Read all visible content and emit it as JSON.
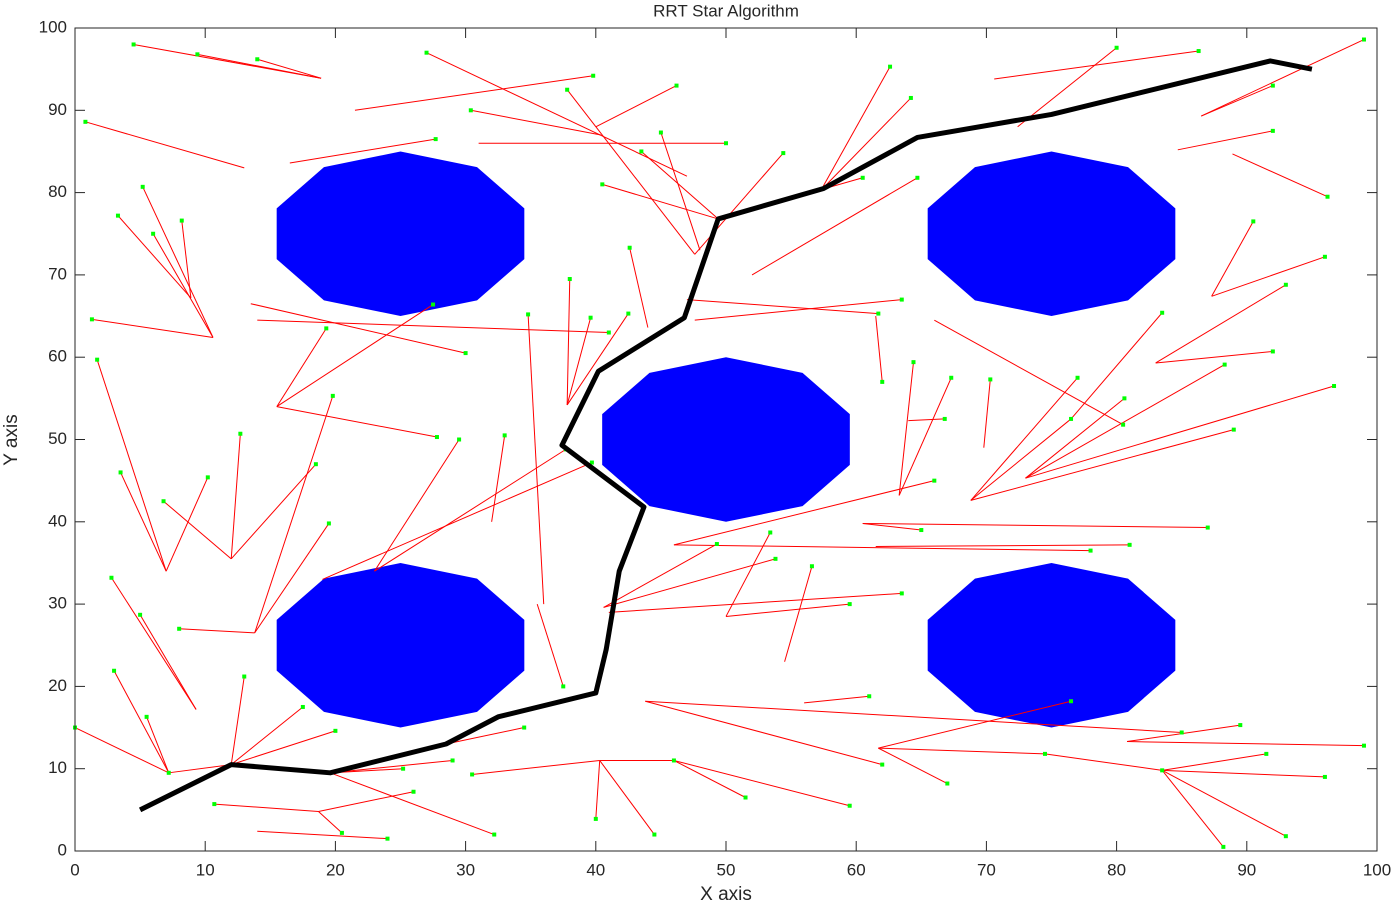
{
  "chart_data": {
    "type": "rrt",
    "title": "RRT Star Algorithm",
    "xlabel": "X axis",
    "ylabel": "Y axis",
    "xlim": [
      0,
      100
    ],
    "ylim": [
      0,
      100
    ],
    "xticks": [
      0,
      10,
      20,
      30,
      40,
      50,
      60,
      70,
      80,
      90,
      100
    ],
    "yticks": [
      0,
      10,
      20,
      30,
      40,
      50,
      60,
      70,
      80,
      90,
      100
    ],
    "obstacle_color": "#0000ff",
    "obstacles": [
      {
        "center": [
          25,
          75
        ],
        "radius": 10,
        "sides": 10
      },
      {
        "center": [
          75,
          75
        ],
        "radius": 10,
        "sides": 10
      },
      {
        "center": [
          50,
          50
        ],
        "radius": 10,
        "sides": 10
      },
      {
        "center": [
          25,
          25
        ],
        "radius": 10,
        "sides": 10
      },
      {
        "center": [
          75,
          25
        ],
        "radius": 10,
        "sides": 10
      }
    ],
    "edge_color": "#ff0000",
    "node_color": "#00ff00",
    "edges": [
      [
        12,
        10.5,
        7.2,
        9.5
      ],
      [
        7.2,
        9.5,
        3,
        21.9
      ],
      [
        7.2,
        9.5,
        5.5,
        16.3
      ],
      [
        7.2,
        9.5,
        0,
        15
      ],
      [
        12,
        10.5,
        17.5,
        17.5
      ],
      [
        12,
        10.5,
        13,
        21.2
      ],
      [
        12,
        10.5,
        20,
        14.6
      ],
      [
        19.6,
        9.5,
        25.2,
        10
      ],
      [
        19.6,
        9.5,
        32.2,
        2
      ],
      [
        19.6,
        9.5,
        29,
        11
      ],
      [
        18.7,
        4.8,
        26,
        7.2
      ],
      [
        18.7,
        4.8,
        10.7,
        5.7
      ],
      [
        18.7,
        4.8,
        20.5,
        2.2
      ],
      [
        14,
        2.4,
        24,
        1.5
      ],
      [
        28.5,
        13,
        34.5,
        15
      ],
      [
        40.3,
        11,
        46,
        11
      ],
      [
        40.3,
        11,
        44.5,
        2
      ],
      [
        40.3,
        11,
        40,
        3.9
      ],
      [
        40.3,
        11,
        30.5,
        9.3
      ],
      [
        46,
        11,
        59.5,
        5.5
      ],
      [
        46,
        11,
        51.5,
        6.5
      ],
      [
        61.7,
        12.5,
        67,
        8.2
      ],
      [
        61.7,
        12.5,
        74.5,
        11.8
      ],
      [
        61.7,
        12.5,
        76.5,
        18.2
      ],
      [
        74.5,
        11.8,
        83.5,
        9.8
      ],
      [
        83.5,
        9.8,
        88.2,
        0.5
      ],
      [
        83.5,
        9.8,
        93,
        1.8
      ],
      [
        83.5,
        9.8,
        96,
        9
      ],
      [
        83.5,
        9.8,
        91.5,
        11.8
      ],
      [
        80.8,
        13.3,
        99,
        12.8
      ],
      [
        80.8,
        13.3,
        89.5,
        15.3
      ],
      [
        56,
        18,
        61,
        18.8
      ],
      [
        43.8,
        18.2,
        62,
        10.5
      ],
      [
        43.8,
        18.2,
        85,
        14.4
      ],
      [
        40.6,
        29.6,
        49.3,
        37.3
      ],
      [
        40.6,
        29.6,
        53.8,
        35.5
      ],
      [
        41,
        29,
        63.5,
        31.3
      ],
      [
        46,
        37.2,
        66,
        45
      ],
      [
        46,
        37.2,
        78,
        36.5
      ],
      [
        60.5,
        39.8,
        65,
        39
      ],
      [
        60.5,
        39.8,
        87,
        39.3
      ],
      [
        61.5,
        37,
        81,
        37.2
      ],
      [
        68.8,
        42.6,
        76.5,
        52.5
      ],
      [
        68.8,
        42.6,
        77,
        57.5
      ],
      [
        68.8,
        42.6,
        89,
        51.2
      ],
      [
        73,
        45.3,
        96.7,
        56.5
      ],
      [
        73,
        45.3,
        88.3,
        59.1
      ],
      [
        73,
        45.3,
        80.6,
        55
      ],
      [
        76.5,
        52.5,
        83.5,
        65.4
      ],
      [
        83,
        59.3,
        93,
        68.8
      ],
      [
        83,
        59.3,
        92,
        60.7
      ],
      [
        87.3,
        67.4,
        90.5,
        76.5
      ],
      [
        87.3,
        67.4,
        96,
        72.2
      ],
      [
        86.5,
        89.3,
        99,
        98.6
      ],
      [
        86.5,
        89.3,
        92,
        93
      ],
      [
        84.7,
        85.2,
        92,
        87.5
      ],
      [
        88.9,
        84.7,
        96.2,
        79.5
      ],
      [
        72.4,
        88,
        80,
        97.6
      ],
      [
        70.6,
        93.8,
        86.3,
        97.2
      ],
      [
        57.3,
        80.3,
        64.2,
        91.5
      ],
      [
        57.3,
        80.3,
        62.6,
        95.3
      ],
      [
        49.4,
        76.8,
        40.5,
        81
      ],
      [
        49.4,
        76.8,
        43.5,
        85
      ],
      [
        47.6,
        72.5,
        54.4,
        84.8
      ],
      [
        47.6,
        72.5,
        37.8,
        92.5
      ],
      [
        48,
        73,
        45,
        87.3
      ],
      [
        47,
        82,
        27,
        97
      ],
      [
        40,
        88,
        46.2,
        93
      ],
      [
        40.4,
        87,
        30.4,
        90
      ],
      [
        31,
        86,
        50,
        86
      ],
      [
        21.5,
        90,
        39.8,
        94.2
      ],
      [
        18.9,
        93.9,
        4.5,
        98
      ],
      [
        18.9,
        93.9,
        9.4,
        96.8
      ],
      [
        18.9,
        93.9,
        14,
        96.2
      ],
      [
        13,
        83,
        0.8,
        88.6
      ],
      [
        16.5,
        83.6,
        27.7,
        86.5
      ],
      [
        10.6,
        62.4,
        5.2,
        80.7
      ],
      [
        10.6,
        62.4,
        1.3,
        64.6
      ],
      [
        10.6,
        62.4,
        6,
        75
      ],
      [
        8.9,
        67.2,
        3.3,
        77.2
      ],
      [
        8.9,
        67.2,
        8.2,
        76.6
      ],
      [
        12,
        35.5,
        12.7,
        50.7
      ],
      [
        12,
        35.5,
        6.8,
        42.5
      ],
      [
        12,
        35.5,
        18.5,
        47
      ],
      [
        7,
        34,
        1.7,
        59.7
      ],
      [
        7,
        34,
        10.2,
        45.4
      ],
      [
        7,
        34,
        3.5,
        46
      ],
      [
        13.8,
        26.5,
        19.5,
        39.8
      ],
      [
        13.8,
        26.5,
        19.8,
        55.3
      ],
      [
        13.8,
        26.5,
        8,
        27
      ],
      [
        9.3,
        17.2,
        5,
        28.7
      ],
      [
        9.3,
        17.2,
        2.8,
        33.2
      ],
      [
        15.5,
        54,
        27.8,
        50.3
      ],
      [
        15.5,
        54,
        19.3,
        63.5
      ],
      [
        15.5,
        54,
        27.5,
        66.4
      ],
      [
        13.5,
        66.5,
        30,
        60.5
      ],
      [
        14,
        64.5,
        41,
        63
      ],
      [
        23,
        34,
        29.5,
        50
      ],
      [
        23,
        34,
        37.7,
        48.8
      ],
      [
        19,
        33,
        39.7,
        47.2
      ],
      [
        32,
        40,
        33,
        50.5
      ],
      [
        35.5,
        30,
        37.5,
        20
      ],
      [
        36,
        30,
        34.8,
        65.2
      ],
      [
        37.8,
        54.2,
        39.6,
        64.8
      ],
      [
        37.8,
        54.2,
        38,
        69.5
      ],
      [
        37.8,
        54.2,
        42.5,
        65.3
      ],
      [
        44,
        63.6,
        42.6,
        73.3
      ],
      [
        47.6,
        64.5,
        63.5,
        67
      ],
      [
        49.4,
        76.8,
        60.5,
        81.8
      ],
      [
        52,
        70,
        64.7,
        81.8
      ],
      [
        47,
        67,
        61.7,
        65.3
      ],
      [
        63.3,
        43.2,
        64.4,
        59.4
      ],
      [
        63.3,
        43.2,
        67.3,
        57.5
      ],
      [
        64,
        52.3,
        66.8,
        52.5
      ],
      [
        69.8,
        49,
        70.3,
        57.3
      ],
      [
        66,
        64.5,
        80.5,
        51.8
      ],
      [
        61.5,
        65,
        62,
        57
      ],
      [
        50,
        28.5,
        53.4,
        38.7
      ],
      [
        50,
        28.5,
        59.5,
        30
      ],
      [
        54.5,
        23,
        56.6,
        34.6
      ]
    ],
    "path_color": "#000000",
    "path": {
      "x": [
        5,
        12,
        19.6,
        28.5,
        32.5,
        40,
        40.8,
        41.8,
        43.7,
        37.4,
        40.2,
        46.8,
        49.4,
        57.5,
        64.7,
        75,
        91.8,
        95
      ],
      "y": [
        5,
        10.5,
        9.5,
        13,
        16.3,
        19.2,
        24.5,
        34,
        41.8,
        49.3,
        58.3,
        64.8,
        76.8,
        80.5,
        86.7,
        89.5,
        96,
        95
      ]
    }
  }
}
